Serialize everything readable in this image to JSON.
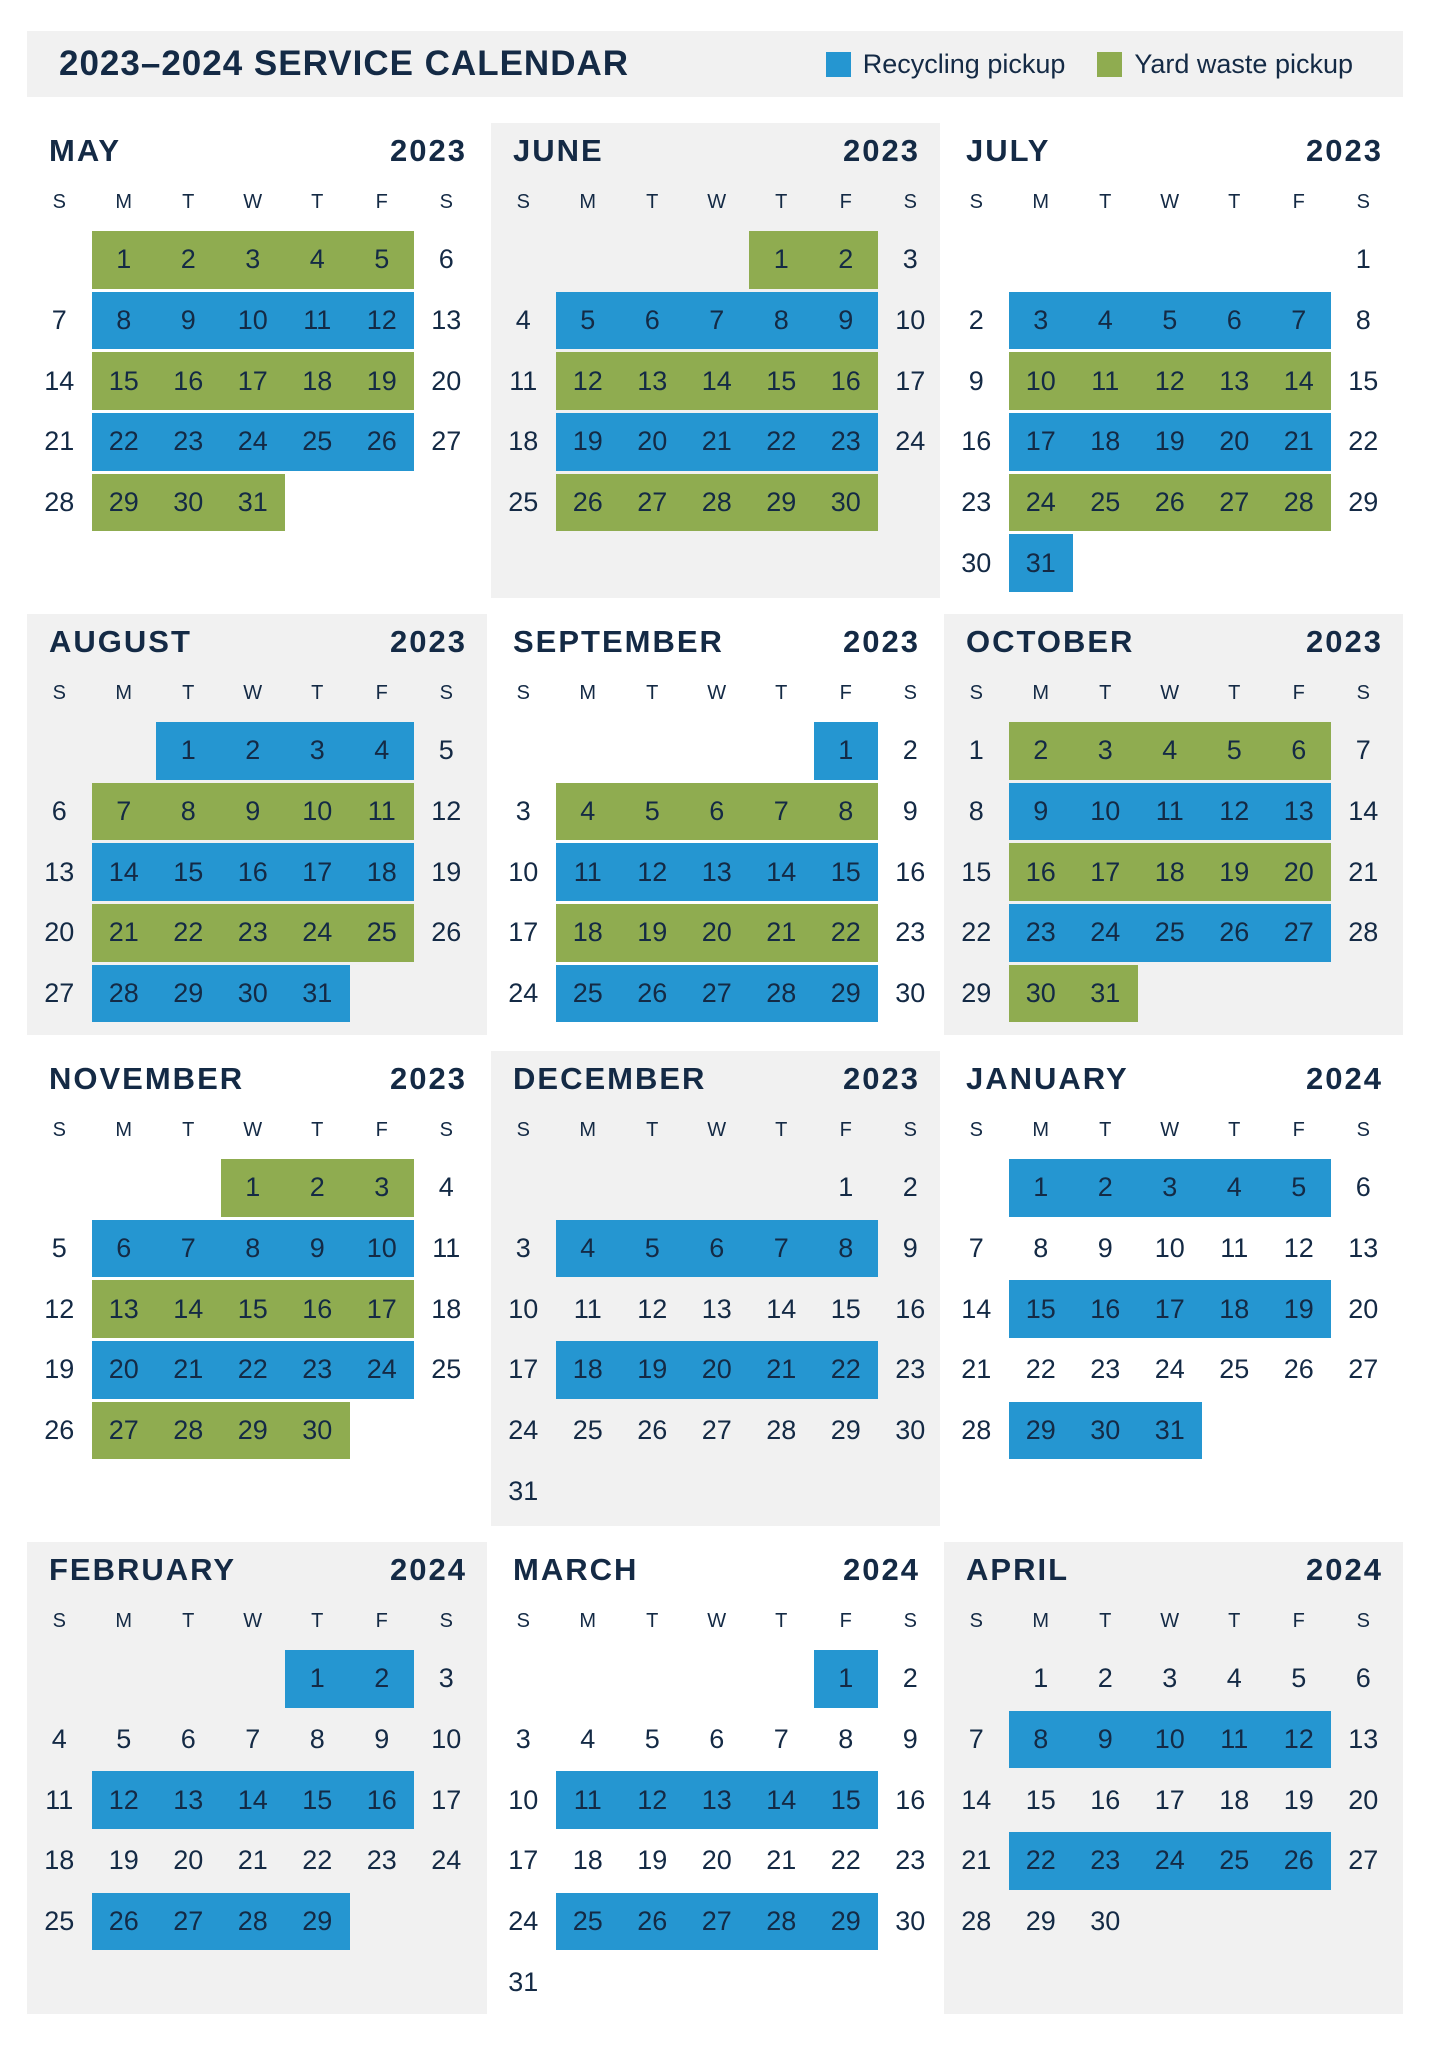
{
  "header": {
    "title": "2023–2024 SERVICE CALENDAR"
  },
  "legend": [
    {
      "label": "Recycling pickup",
      "type": "rec",
      "color": "#2596d1"
    },
    {
      "label": "Yard waste pickup",
      "type": "yard",
      "color": "#8fac50"
    }
  ],
  "weekdays": [
    "S",
    "M",
    "T",
    "W",
    "T",
    "F",
    "S"
  ],
  "months": [
    {
      "name": "MAY",
      "year": "2023",
      "start_weekday": 1,
      "days": 31,
      "pickups": [
        [
          1,
          5,
          "yard"
        ],
        [
          8,
          12,
          "rec"
        ],
        [
          15,
          19,
          "yard"
        ],
        [
          22,
          26,
          "rec"
        ],
        [
          29,
          31,
          "yard"
        ]
      ]
    },
    {
      "name": "JUNE",
      "year": "2023",
      "start_weekday": 4,
      "days": 30,
      "pickups": [
        [
          1,
          2,
          "yard"
        ],
        [
          5,
          9,
          "rec"
        ],
        [
          12,
          16,
          "yard"
        ],
        [
          19,
          23,
          "rec"
        ],
        [
          26,
          30,
          "yard"
        ]
      ]
    },
    {
      "name": "JULY",
      "year": "2023",
      "start_weekday": 6,
      "days": 31,
      "pickups": [
        [
          3,
          7,
          "rec"
        ],
        [
          10,
          14,
          "yard"
        ],
        [
          17,
          21,
          "rec"
        ],
        [
          24,
          28,
          "yard"
        ],
        [
          31,
          31,
          "rec"
        ]
      ]
    },
    {
      "name": "AUGUST",
      "year": "2023",
      "start_weekday": 2,
      "days": 31,
      "pickups": [
        [
          1,
          4,
          "rec"
        ],
        [
          7,
          11,
          "yard"
        ],
        [
          14,
          18,
          "rec"
        ],
        [
          21,
          25,
          "yard"
        ],
        [
          28,
          31,
          "rec"
        ]
      ]
    },
    {
      "name": "SEPTEMBER",
      "year": "2023",
      "start_weekday": 5,
      "days": 30,
      "pickups": [
        [
          1,
          1,
          "rec"
        ],
        [
          4,
          8,
          "yard"
        ],
        [
          11,
          15,
          "rec"
        ],
        [
          18,
          22,
          "yard"
        ],
        [
          25,
          29,
          "rec"
        ]
      ]
    },
    {
      "name": "OCTOBER",
      "year": "2023",
      "start_weekday": 0,
      "days": 31,
      "pickups": [
        [
          2,
          6,
          "yard"
        ],
        [
          9,
          13,
          "rec"
        ],
        [
          16,
          20,
          "yard"
        ],
        [
          23,
          27,
          "rec"
        ],
        [
          30,
          31,
          "yard"
        ]
      ]
    },
    {
      "name": "NOVEMBER",
      "year": "2023",
      "start_weekday": 3,
      "days": 30,
      "pickups": [
        [
          1,
          3,
          "yard"
        ],
        [
          6,
          10,
          "rec"
        ],
        [
          13,
          17,
          "yard"
        ],
        [
          20,
          24,
          "rec"
        ],
        [
          27,
          30,
          "yard"
        ]
      ]
    },
    {
      "name": "DECEMBER",
      "year": "2023",
      "start_weekday": 5,
      "days": 31,
      "pickups": [
        [
          4,
          8,
          "rec"
        ],
        [
          18,
          22,
          "rec"
        ]
      ]
    },
    {
      "name": "JANUARY",
      "year": "2024",
      "start_weekday": 1,
      "days": 31,
      "pickups": [
        [
          1,
          5,
          "rec"
        ],
        [
          15,
          19,
          "rec"
        ],
        [
          29,
          31,
          "rec"
        ]
      ]
    },
    {
      "name": "FEBRUARY",
      "year": "2024",
      "start_weekday": 4,
      "days": 29,
      "pickups": [
        [
          1,
          2,
          "rec"
        ],
        [
          12,
          16,
          "rec"
        ],
        [
          26,
          29,
          "rec"
        ]
      ]
    },
    {
      "name": "MARCH",
      "year": "2024",
      "start_weekday": 5,
      "days": 31,
      "pickups": [
        [
          1,
          1,
          "rec"
        ],
        [
          11,
          15,
          "rec"
        ],
        [
          25,
          29,
          "rec"
        ]
      ]
    },
    {
      "name": "APRIL",
      "year": "2024",
      "start_weekday": 1,
      "days": 30,
      "pickups": [
        [
          8,
          12,
          "rec"
        ],
        [
          22,
          26,
          "rec"
        ]
      ]
    }
  ]
}
